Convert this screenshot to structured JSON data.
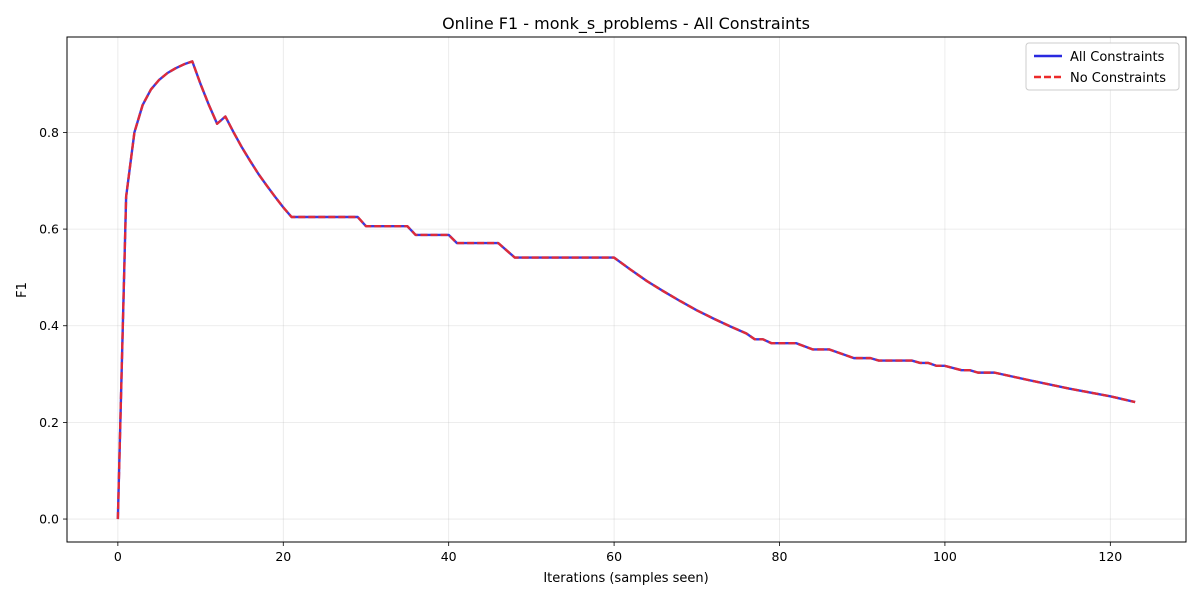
{
  "chart_data": {
    "type": "line",
    "title": "Online F1 - monk_s_problems - All Constraints",
    "xlabel": "Iterations (samples seen)",
    "ylabel": "F1",
    "xlim": [
      -6.15,
      129.15
    ],
    "ylim": [
      -0.0475,
      0.9975
    ],
    "xticks": [
      0,
      20,
      40,
      60,
      80,
      100,
      120
    ],
    "yticks": [
      0.0,
      0.2,
      0.4,
      0.6,
      0.8
    ],
    "xtick_labels": [
      "0",
      "20",
      "40",
      "60",
      "80",
      "100",
      "120"
    ],
    "ytick_labels": [
      "0.0",
      "0.2",
      "0.4",
      "0.6",
      "0.8"
    ],
    "grid": true,
    "legend_position": "top-right",
    "series": [
      {
        "name": "All Constraints",
        "color": "#2929e0",
        "style": "solid",
        "x": [
          0,
          1,
          2,
          3,
          4,
          5,
          6,
          7,
          8,
          9,
          10,
          11,
          12,
          13,
          14,
          15,
          16,
          17,
          18,
          19,
          20,
          21,
          29,
          30,
          35,
          36,
          40,
          41,
          46,
          48,
          60,
          62,
          64,
          66,
          68,
          70,
          72,
          74,
          76,
          77,
          78,
          79,
          82,
          84,
          86,
          89,
          91,
          92,
          96,
          97,
          98,
          99,
          100,
          102,
          103,
          104,
          106,
          110,
          115,
          120,
          123
        ],
        "y": [
          0.0,
          0.667,
          0.8,
          0.857,
          0.889,
          0.909,
          0.923,
          0.933,
          0.941,
          0.947,
          0.9,
          0.857,
          0.818,
          0.833,
          0.8,
          0.769,
          0.741,
          0.714,
          0.69,
          0.667,
          0.645,
          0.625,
          0.625,
          0.606,
          0.606,
          0.588,
          0.588,
          0.571,
          0.571,
          0.541,
          0.541,
          0.516,
          0.492,
          0.471,
          0.451,
          0.432,
          0.415,
          0.399,
          0.384,
          0.372,
          0.372,
          0.364,
          0.364,
          0.351,
          0.351,
          0.333,
          0.333,
          0.328,
          0.328,
          0.323,
          0.323,
          0.317,
          0.317,
          0.308,
          0.308,
          0.303,
          0.303,
          0.288,
          0.27,
          0.254,
          0.242
        ]
      },
      {
        "name": "No Constraints",
        "color": "#ec2a2a",
        "style": "dashed",
        "x": [
          0,
          1,
          2,
          3,
          4,
          5,
          6,
          7,
          8,
          9,
          10,
          11,
          12,
          13,
          14,
          15,
          16,
          17,
          18,
          19,
          20,
          21,
          29,
          30,
          35,
          36,
          40,
          41,
          46,
          48,
          60,
          62,
          64,
          66,
          68,
          70,
          72,
          74,
          76,
          77,
          78,
          79,
          82,
          84,
          86,
          89,
          91,
          92,
          96,
          97,
          98,
          99,
          100,
          102,
          103,
          104,
          106,
          110,
          115,
          120,
          123
        ],
        "y": [
          0.0,
          0.667,
          0.8,
          0.857,
          0.889,
          0.909,
          0.923,
          0.933,
          0.941,
          0.947,
          0.9,
          0.857,
          0.818,
          0.833,
          0.8,
          0.769,
          0.741,
          0.714,
          0.69,
          0.667,
          0.645,
          0.625,
          0.625,
          0.606,
          0.606,
          0.588,
          0.588,
          0.571,
          0.571,
          0.541,
          0.541,
          0.516,
          0.492,
          0.471,
          0.451,
          0.432,
          0.415,
          0.399,
          0.384,
          0.372,
          0.372,
          0.364,
          0.364,
          0.351,
          0.351,
          0.333,
          0.333,
          0.328,
          0.328,
          0.323,
          0.323,
          0.317,
          0.317,
          0.308,
          0.308,
          0.303,
          0.303,
          0.288,
          0.27,
          0.254,
          0.242
        ]
      }
    ]
  }
}
